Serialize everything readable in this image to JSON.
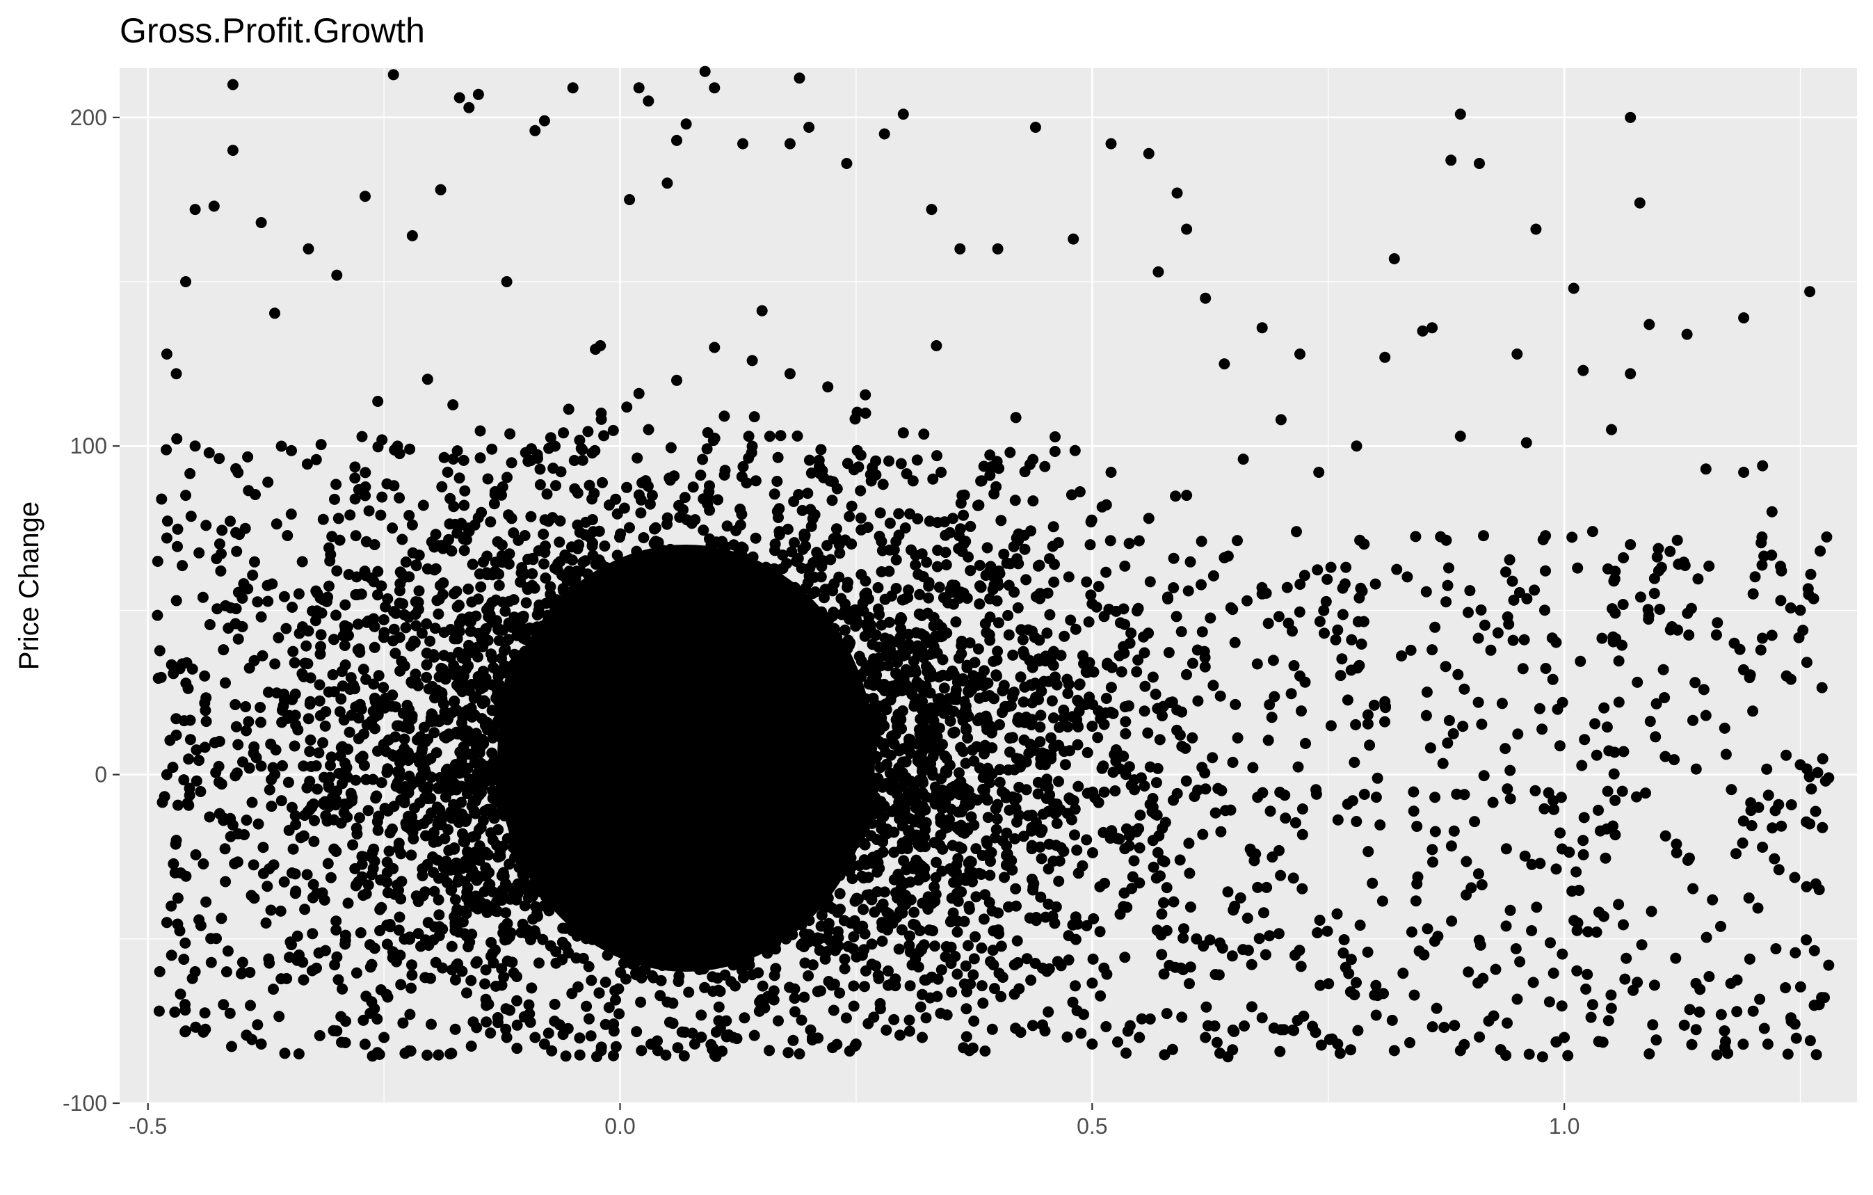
{
  "chart_data": {
    "type": "scatter",
    "title": "Gross.Profit.Growth",
    "xlabel": "",
    "ylabel": "Price Change",
    "xlim": [
      -0.53,
      1.31
    ],
    "ylim": [
      -100,
      215
    ],
    "x_ticks": [
      -0.5,
      0.0,
      0.5,
      1.0
    ],
    "x_tick_labels": [
      "-0.5",
      "0.0",
      "0.5",
      "1.0"
    ],
    "y_ticks": [
      -100,
      0,
      100,
      200
    ],
    "y_tick_labels": [
      "-100",
      "0",
      "100",
      "200"
    ],
    "grid": true,
    "legend": "none",
    "colors": {
      "panel": "#ebebeb",
      "grid": "#ffffff",
      "point": "#000000",
      "tick_text": "#4d4d4d"
    },
    "dense_region": {
      "x_center": 0.07,
      "y_center": 5,
      "description_range_x": [
        -0.12,
        0.28
      ],
      "description_range_y": [
        -60,
        70
      ]
    },
    "points": [
      [
        -0.41,
        210
      ],
      [
        -0.24,
        213
      ],
      [
        -0.17,
        206
      ],
      [
        -0.16,
        203
      ],
      [
        -0.15,
        207
      ],
      [
        -0.05,
        209
      ],
      [
        0.02,
        209
      ],
      [
        0.03,
        205
      ],
      [
        0.07,
        198
      ],
      [
        0.09,
        214
      ],
      [
        0.1,
        209
      ],
      [
        0.19,
        212
      ],
      [
        0.13,
        192
      ],
      [
        0.06,
        193
      ],
      [
        0.3,
        201
      ],
      [
        0.28,
        195
      ],
      [
        0.44,
        197
      ],
      [
        0.52,
        192
      ],
      [
        0.56,
        189
      ],
      [
        0.59,
        177
      ],
      [
        0.88,
        187
      ],
      [
        0.91,
        186
      ],
      [
        0.89,
        201
      ],
      [
        1.07,
        200
      ],
      [
        1.08,
        174
      ],
      [
        1.26,
        147
      ],
      [
        1.01,
        148
      ],
      [
        0.97,
        166
      ],
      [
        0.82,
        157
      ],
      [
        0.85,
        135
      ],
      [
        -0.45,
        172
      ],
      [
        -0.43,
        173
      ],
      [
        -0.41,
        190
      ],
      [
        -0.38,
        168
      ],
      [
        -0.46,
        150
      ],
      [
        -0.48,
        128
      ],
      [
        -0.47,
        122
      ],
      [
        -0.45,
        100
      ],
      [
        -0.48,
        72
      ],
      [
        -0.46,
        85
      ],
      [
        -0.33,
        160
      ],
      [
        -0.3,
        152
      ],
      [
        -0.27,
        176
      ],
      [
        -0.22,
        164
      ],
      [
        -0.19,
        178
      ],
      [
        -0.12,
        150
      ],
      [
        -0.09,
        196
      ],
      [
        -0.08,
        199
      ],
      [
        0.01,
        175
      ],
      [
        0.05,
        180
      ],
      [
        0.18,
        192
      ],
      [
        0.2,
        197
      ],
      [
        0.24,
        186
      ],
      [
        0.33,
        172
      ],
      [
        0.36,
        160
      ],
      [
        0.4,
        160
      ],
      [
        0.48,
        163
      ],
      [
        0.57,
        153
      ],
      [
        0.6,
        166
      ],
      [
        0.62,
        145
      ],
      [
        0.68,
        136
      ],
      [
        0.72,
        128
      ],
      [
        0.81,
        127
      ],
      [
        0.86,
        136
      ],
      [
        0.95,
        128
      ],
      [
        1.02,
        123
      ],
      [
        1.07,
        122
      ],
      [
        1.09,
        137
      ],
      [
        1.13,
        134
      ],
      [
        1.19,
        139
      ],
      [
        1.21,
        94
      ],
      [
        1.19,
        92
      ],
      [
        1.22,
        80
      ],
      [
        1.15,
        93
      ],
      [
        1.05,
        105
      ],
      [
        0.96,
        101
      ],
      [
        0.89,
        103
      ],
      [
        0.78,
        100
      ],
      [
        0.74,
        92
      ],
      [
        0.66,
        96
      ],
      [
        0.6,
        85
      ],
      [
        0.56,
        78
      ],
      [
        0.52,
        92
      ],
      [
        0.64,
        125
      ],
      [
        0.7,
        108
      ],
      [
        -0.4,
        45
      ],
      [
        -0.44,
        30
      ],
      [
        -0.47,
        12
      ],
      [
        -0.48,
        0
      ],
      [
        -0.47,
        -20
      ],
      [
        -0.48,
        -45
      ],
      [
        -0.45,
        -60
      ],
      [
        -0.46,
        -78
      ],
      [
        -0.42,
        -70
      ],
      [
        -0.38,
        -82
      ],
      [
        -0.34,
        -85
      ],
      [
        -0.3,
        -78
      ],
      [
        -0.25,
        -80
      ],
      [
        -0.2,
        -76
      ],
      [
        -0.18,
        -85
      ],
      [
        -0.12,
        -80
      ],
      [
        -0.08,
        -82
      ],
      [
        -0.02,
        -84
      ],
      [
        0.04,
        -84
      ],
      [
        0.12,
        -80
      ],
      [
        0.19,
        -85
      ],
      [
        0.25,
        -82
      ],
      [
        0.32,
        -80
      ],
      [
        0.37,
        -84
      ],
      [
        0.45,
        -78
      ],
      [
        0.5,
        -82
      ],
      [
        0.55,
        -80
      ],
      [
        0.62,
        -80
      ],
      [
        0.68,
        -74
      ],
      [
        0.76,
        -82
      ],
      [
        0.82,
        -84
      ],
      [
        0.89,
        -84
      ],
      [
        0.92,
        -75
      ],
      [
        1.0,
        -80
      ],
      [
        1.03,
        -70
      ],
      [
        1.09,
        -85
      ],
      [
        1.17,
        -83
      ],
      [
        1.2,
        -72
      ],
      [
        1.24,
        -74
      ],
      [
        1.27,
        -70
      ],
      [
        1.28,
        -58
      ],
      [
        1.27,
        -35
      ],
      [
        1.26,
        -15
      ],
      [
        1.28,
        -1
      ],
      [
        1.25,
        3
      ],
      [
        1.24,
        29
      ],
      [
        1.25,
        50
      ],
      [
        1.23,
        62
      ],
      [
        1.2,
        55
      ],
      [
        1.18,
        40
      ],
      [
        1.15,
        18
      ],
      [
        1.12,
        44
      ],
      [
        1.1,
        62
      ],
      [
        1.07,
        70
      ],
      [
        1.03,
        74
      ],
      [
        0.98,
        62
      ],
      [
        0.94,
        48
      ],
      [
        0.9,
        56
      ],
      [
        0.86,
        38
      ],
      [
        0.8,
        58
      ],
      [
        0.76,
        44
      ],
      [
        0.72,
        30
      ],
      [
        0.68,
        55
      ],
      [
        0.64,
        66
      ],
      [
        0.58,
        54
      ],
      [
        0.54,
        40
      ],
      [
        0.5,
        52
      ],
      [
        0.46,
        64
      ],
      [
        0.42,
        72
      ],
      [
        0.38,
        82
      ],
      [
        0.34,
        92
      ],
      [
        0.3,
        104
      ],
      [
        0.26,
        110
      ],
      [
        0.22,
        118
      ],
      [
        0.18,
        122
      ],
      [
        0.14,
        126
      ],
      [
        0.1,
        130
      ],
      [
        0.06,
        120
      ],
      [
        0.02,
        116
      ],
      [
        -0.02,
        110
      ],
      [
        -0.06,
        104
      ],
      [
        -0.1,
        98
      ],
      [
        -0.14,
        90
      ],
      [
        -0.18,
        84
      ],
      [
        -0.22,
        76
      ],
      [
        -0.26,
        70
      ],
      [
        -0.3,
        62
      ],
      [
        -0.34,
        55
      ],
      [
        -0.38,
        48
      ],
      [
        -0.42,
        38
      ]
    ]
  }
}
